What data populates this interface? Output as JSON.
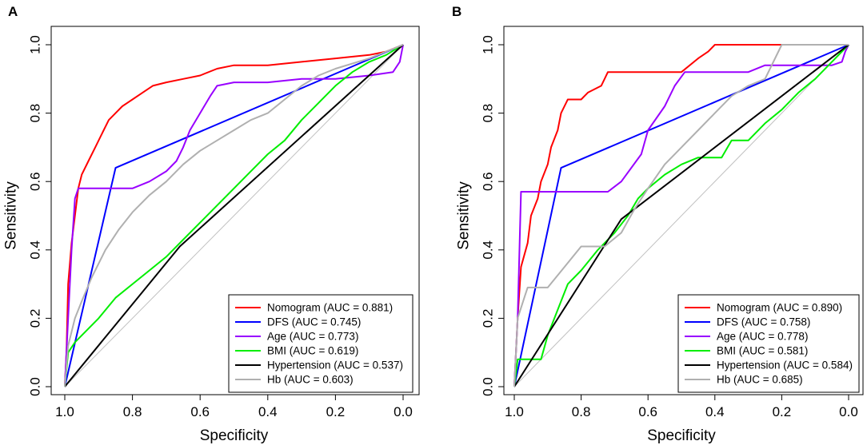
{
  "chart_data": [
    {
      "type": "line",
      "subtype": "roc",
      "panel_label": "A",
      "xlabel": "Specificity",
      "ylabel": "Sensitivity",
      "xlim": [
        1.0,
        0.0
      ],
      "ylim": [
        0.0,
        1.0
      ],
      "x_ticks": [
        "1.0",
        "0.8",
        "0.6",
        "0.4",
        "0.2",
        "0.0"
      ],
      "y_ticks": [
        "0.0",
        "0.2",
        "0.4",
        "0.6",
        "0.8",
        "1.0"
      ],
      "grid": false,
      "legend_position": "bottom-right",
      "reference_line": {
        "color": "#c0c0c0",
        "from": [
          1.0,
          0.0
        ],
        "to": [
          0.0,
          1.0
        ]
      },
      "series": [
        {
          "name": "Nomogram (AUC = 0.881)",
          "color": "#ff0000",
          "points": [
            [
              1.0,
              0.0
            ],
            [
              0.995,
              0.1
            ],
            [
              0.99,
              0.3
            ],
            [
              0.98,
              0.42
            ],
            [
              0.97,
              0.5
            ],
            [
              0.96,
              0.58
            ],
            [
              0.95,
              0.62
            ],
            [
              0.93,
              0.66
            ],
            [
              0.91,
              0.7
            ],
            [
              0.89,
              0.74
            ],
            [
              0.87,
              0.78
            ],
            [
              0.85,
              0.8
            ],
            [
              0.83,
              0.82
            ],
            [
              0.8,
              0.84
            ],
            [
              0.77,
              0.86
            ],
            [
              0.74,
              0.88
            ],
            [
              0.7,
              0.89
            ],
            [
              0.65,
              0.9
            ],
            [
              0.6,
              0.91
            ],
            [
              0.55,
              0.93
            ],
            [
              0.5,
              0.94
            ],
            [
              0.4,
              0.94
            ],
            [
              0.3,
              0.95
            ],
            [
              0.2,
              0.96
            ],
            [
              0.1,
              0.97
            ],
            [
              0.05,
              0.98
            ],
            [
              0.0,
              1.0
            ]
          ]
        },
        {
          "name": "DFS (AUC = 0.745)",
          "color": "#0000ff",
          "points": [
            [
              1.0,
              0.0
            ],
            [
              0.85,
              0.64
            ],
            [
              0.0,
              1.0
            ]
          ]
        },
        {
          "name": "Age (AUC = 0.773)",
          "color": "#9900ff",
          "points": [
            [
              1.0,
              0.0
            ],
            [
              0.995,
              0.1
            ],
            [
              0.99,
              0.2
            ],
            [
              0.98,
              0.4
            ],
            [
              0.97,
              0.55
            ],
            [
              0.96,
              0.58
            ],
            [
              0.8,
              0.58
            ],
            [
              0.75,
              0.6
            ],
            [
              0.7,
              0.63
            ],
            [
              0.67,
              0.66
            ],
            [
              0.65,
              0.7
            ],
            [
              0.63,
              0.75
            ],
            [
              0.6,
              0.8
            ],
            [
              0.57,
              0.85
            ],
            [
              0.55,
              0.88
            ],
            [
              0.5,
              0.89
            ],
            [
              0.4,
              0.89
            ],
            [
              0.3,
              0.9
            ],
            [
              0.2,
              0.9
            ],
            [
              0.1,
              0.91
            ],
            [
              0.03,
              0.92
            ],
            [
              0.01,
              0.95
            ],
            [
              0.0,
              1.0
            ]
          ]
        },
        {
          "name": "BMI (AUC = 0.619)",
          "color": "#00ee00",
          "points": [
            [
              1.0,
              0.0
            ],
            [
              0.99,
              0.1
            ],
            [
              0.97,
              0.13
            ],
            [
              0.95,
              0.15
            ],
            [
              0.9,
              0.2
            ],
            [
              0.85,
              0.26
            ],
            [
              0.8,
              0.3
            ],
            [
              0.75,
              0.34
            ],
            [
              0.7,
              0.38
            ],
            [
              0.65,
              0.43
            ],
            [
              0.6,
              0.48
            ],
            [
              0.5,
              0.58
            ],
            [
              0.45,
              0.63
            ],
            [
              0.4,
              0.68
            ],
            [
              0.35,
              0.72
            ],
            [
              0.3,
              0.78
            ],
            [
              0.25,
              0.83
            ],
            [
              0.2,
              0.88
            ],
            [
              0.15,
              0.92
            ],
            [
              0.1,
              0.95
            ],
            [
              0.05,
              0.97
            ],
            [
              0.0,
              1.0
            ]
          ]
        },
        {
          "name": "Hypertension (AUC = 0.537)",
          "color": "#000000",
          "points": [
            [
              1.0,
              0.0
            ],
            [
              0.66,
              0.41
            ],
            [
              0.0,
              1.0
            ]
          ]
        },
        {
          "name": "Hb (AUC = 0.603)",
          "color": "#b0b0b0",
          "points": [
            [
              1.0,
              0.0
            ],
            [
              0.99,
              0.12
            ],
            [
              0.97,
              0.2
            ],
            [
              0.95,
              0.25
            ],
            [
              0.92,
              0.32
            ],
            [
              0.88,
              0.4
            ],
            [
              0.84,
              0.46
            ],
            [
              0.8,
              0.51
            ],
            [
              0.75,
              0.56
            ],
            [
              0.7,
              0.6
            ],
            [
              0.65,
              0.65
            ],
            [
              0.6,
              0.69
            ],
            [
              0.55,
              0.72
            ],
            [
              0.5,
              0.75
            ],
            [
              0.45,
              0.78
            ],
            [
              0.4,
              0.8
            ],
            [
              0.35,
              0.84
            ],
            [
              0.3,
              0.88
            ],
            [
              0.25,
              0.91
            ],
            [
              0.2,
              0.93
            ],
            [
              0.1,
              0.96
            ],
            [
              0.05,
              0.98
            ],
            [
              0.0,
              1.0
            ]
          ]
        }
      ]
    },
    {
      "type": "line",
      "subtype": "roc",
      "panel_label": "B",
      "xlabel": "Specificity",
      "ylabel": "Sensitivity",
      "xlim": [
        1.0,
        0.0
      ],
      "ylim": [
        0.0,
        1.0
      ],
      "x_ticks": [
        "1.0",
        "0.8",
        "0.6",
        "0.4",
        "0.2",
        "0.0"
      ],
      "y_ticks": [
        "0.0",
        "0.2",
        "0.4",
        "0.6",
        "0.8",
        "1.0"
      ],
      "grid": false,
      "legend_position": "bottom-right",
      "reference_line": {
        "color": "#c0c0c0",
        "from": [
          1.0,
          0.0
        ],
        "to": [
          0.0,
          1.0
        ]
      },
      "series": [
        {
          "name": "Nomogram (AUC = 0.890)",
          "color": "#ff0000",
          "points": [
            [
              1.0,
              0.0
            ],
            [
              0.99,
              0.2
            ],
            [
              0.98,
              0.35
            ],
            [
              0.96,
              0.42
            ],
            [
              0.95,
              0.5
            ],
            [
              0.93,
              0.55
            ],
            [
              0.92,
              0.6
            ],
            [
              0.9,
              0.65
            ],
            [
              0.89,
              0.7
            ],
            [
              0.87,
              0.75
            ],
            [
              0.86,
              0.8
            ],
            [
              0.84,
              0.84
            ],
            [
              0.8,
              0.84
            ],
            [
              0.78,
              0.86
            ],
            [
              0.74,
              0.88
            ],
            [
              0.73,
              0.9
            ],
            [
              0.72,
              0.92
            ],
            [
              0.6,
              0.92
            ],
            [
              0.5,
              0.92
            ],
            [
              0.45,
              0.96
            ],
            [
              0.42,
              0.98
            ],
            [
              0.4,
              1.0
            ],
            [
              0.2,
              1.0
            ]
          ]
        },
        {
          "name": "DFS (AUC = 0.758)",
          "color": "#0000ff",
          "points": [
            [
              1.0,
              0.0
            ],
            [
              0.86,
              0.64
            ],
            [
              0.0,
              1.0
            ]
          ]
        },
        {
          "name": "Age (AUC = 0.778)",
          "color": "#9900ff",
          "points": [
            [
              1.0,
              0.0
            ],
            [
              0.99,
              0.2
            ],
            [
              0.98,
              0.57
            ],
            [
              0.72,
              0.57
            ],
            [
              0.68,
              0.6
            ],
            [
              0.62,
              0.68
            ],
            [
              0.6,
              0.75
            ],
            [
              0.55,
              0.82
            ],
            [
              0.52,
              0.88
            ],
            [
              0.49,
              0.92
            ],
            [
              0.3,
              0.92
            ],
            [
              0.25,
              0.94
            ],
            [
              0.05,
              0.94
            ],
            [
              0.02,
              0.95
            ],
            [
              0.01,
              0.98
            ],
            [
              0.0,
              1.0
            ]
          ]
        },
        {
          "name": "BMI (AUC = 0.581)",
          "color": "#00ee00",
          "points": [
            [
              1.0,
              0.0
            ],
            [
              0.99,
              0.08
            ],
            [
              0.92,
              0.08
            ],
            [
              0.9,
              0.15
            ],
            [
              0.86,
              0.25
            ],
            [
              0.84,
              0.3
            ],
            [
              0.8,
              0.34
            ],
            [
              0.75,
              0.4
            ],
            [
              0.7,
              0.45
            ],
            [
              0.66,
              0.5
            ],
            [
              0.63,
              0.55
            ],
            [
              0.6,
              0.58
            ],
            [
              0.55,
              0.62
            ],
            [
              0.5,
              0.65
            ],
            [
              0.45,
              0.67
            ],
            [
              0.38,
              0.67
            ],
            [
              0.35,
              0.72
            ],
            [
              0.3,
              0.72
            ],
            [
              0.25,
              0.77
            ],
            [
              0.2,
              0.81
            ],
            [
              0.15,
              0.86
            ],
            [
              0.1,
              0.9
            ],
            [
              0.05,
              0.95
            ],
            [
              0.0,
              1.0
            ]
          ]
        },
        {
          "name": "Hypertension (AUC = 0.584)",
          "color": "#000000",
          "points": [
            [
              1.0,
              0.0
            ],
            [
              0.68,
              0.49
            ],
            [
              0.0,
              1.0
            ]
          ]
        },
        {
          "name": "Hb (AUC = 0.685)",
          "color": "#b0b0b0",
          "points": [
            [
              1.0,
              0.0
            ],
            [
              0.99,
              0.2
            ],
            [
              0.97,
              0.26
            ],
            [
              0.96,
              0.29
            ],
            [
              0.9,
              0.29
            ],
            [
              0.85,
              0.35
            ],
            [
              0.8,
              0.41
            ],
            [
              0.73,
              0.41
            ],
            [
              0.68,
              0.45
            ],
            [
              0.64,
              0.52
            ],
            [
              0.6,
              0.58
            ],
            [
              0.55,
              0.65
            ],
            [
              0.5,
              0.7
            ],
            [
              0.45,
              0.75
            ],
            [
              0.4,
              0.8
            ],
            [
              0.35,
              0.85
            ],
            [
              0.3,
              0.88
            ],
            [
              0.25,
              0.9
            ],
            [
              0.2,
              1.0
            ],
            [
              0.0,
              1.0
            ]
          ]
        }
      ]
    }
  ]
}
